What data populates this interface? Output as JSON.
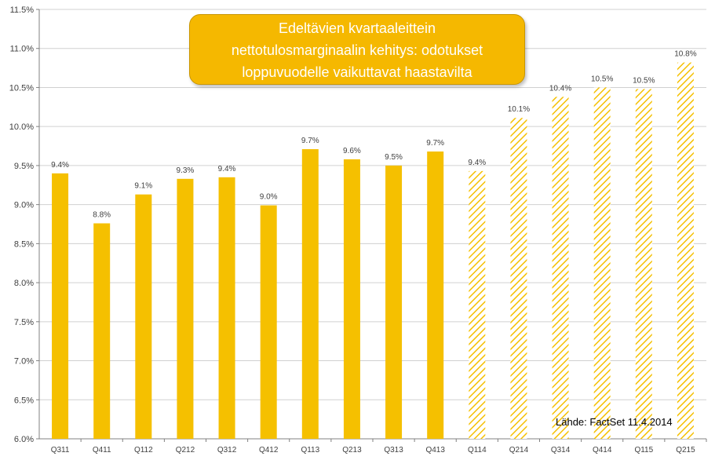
{
  "chart_data": {
    "type": "bar",
    "categories": [
      "Q311",
      "Q411",
      "Q112",
      "Q212",
      "Q312",
      "Q412",
      "Q113",
      "Q213",
      "Q313",
      "Q413",
      "Q114",
      "Q214",
      "Q314",
      "Q414",
      "Q115",
      "Q215"
    ],
    "values": [
      9.4,
      8.76,
      9.13,
      9.33,
      9.35,
      8.99,
      9.71,
      9.58,
      9.5,
      9.68,
      9.43,
      10.11,
      10.38,
      10.5,
      10.48,
      10.82
    ],
    "data_labels": [
      "9.4%",
      "8.8%",
      "9.1%",
      "9.3%",
      "9.4%",
      "9.0%",
      "9.7%",
      "9.6%",
      "9.5%",
      "9.7%",
      "9.4%",
      "10.1%",
      "10.4%",
      "10.5%",
      "10.5%",
      "10.8%"
    ],
    "forecast": [
      false,
      false,
      false,
      false,
      false,
      false,
      false,
      false,
      false,
      false,
      true,
      true,
      true,
      true,
      true,
      true
    ],
    "ylim": [
      6.0,
      11.5
    ],
    "yticks": [
      6.0,
      6.5,
      7.0,
      7.5,
      8.0,
      8.5,
      9.0,
      9.5,
      10.0,
      10.5,
      11.0,
      11.5
    ],
    "ytick_labels": [
      "6.0%",
      "6.5%",
      "7.0%",
      "7.5%",
      "8.0%",
      "8.5%",
      "9.0%",
      "9.5%",
      "10.0%",
      "10.5%",
      "11.0%",
      "11.5%"
    ],
    "grid": true,
    "colors": {
      "actual": "#f5c000",
      "forecast": "#f5c000",
      "grid": "#d0d0d0",
      "axis": "#808080"
    }
  },
  "callout": {
    "lines": [
      "Edeltävien kvartaaleittein",
      "nettotulosmarginaalin kehitys: odotukset",
      "loppuvuodelle vaikuttavat haastavilta"
    ]
  },
  "source": "Lähde: FactSet 11.4.2014"
}
